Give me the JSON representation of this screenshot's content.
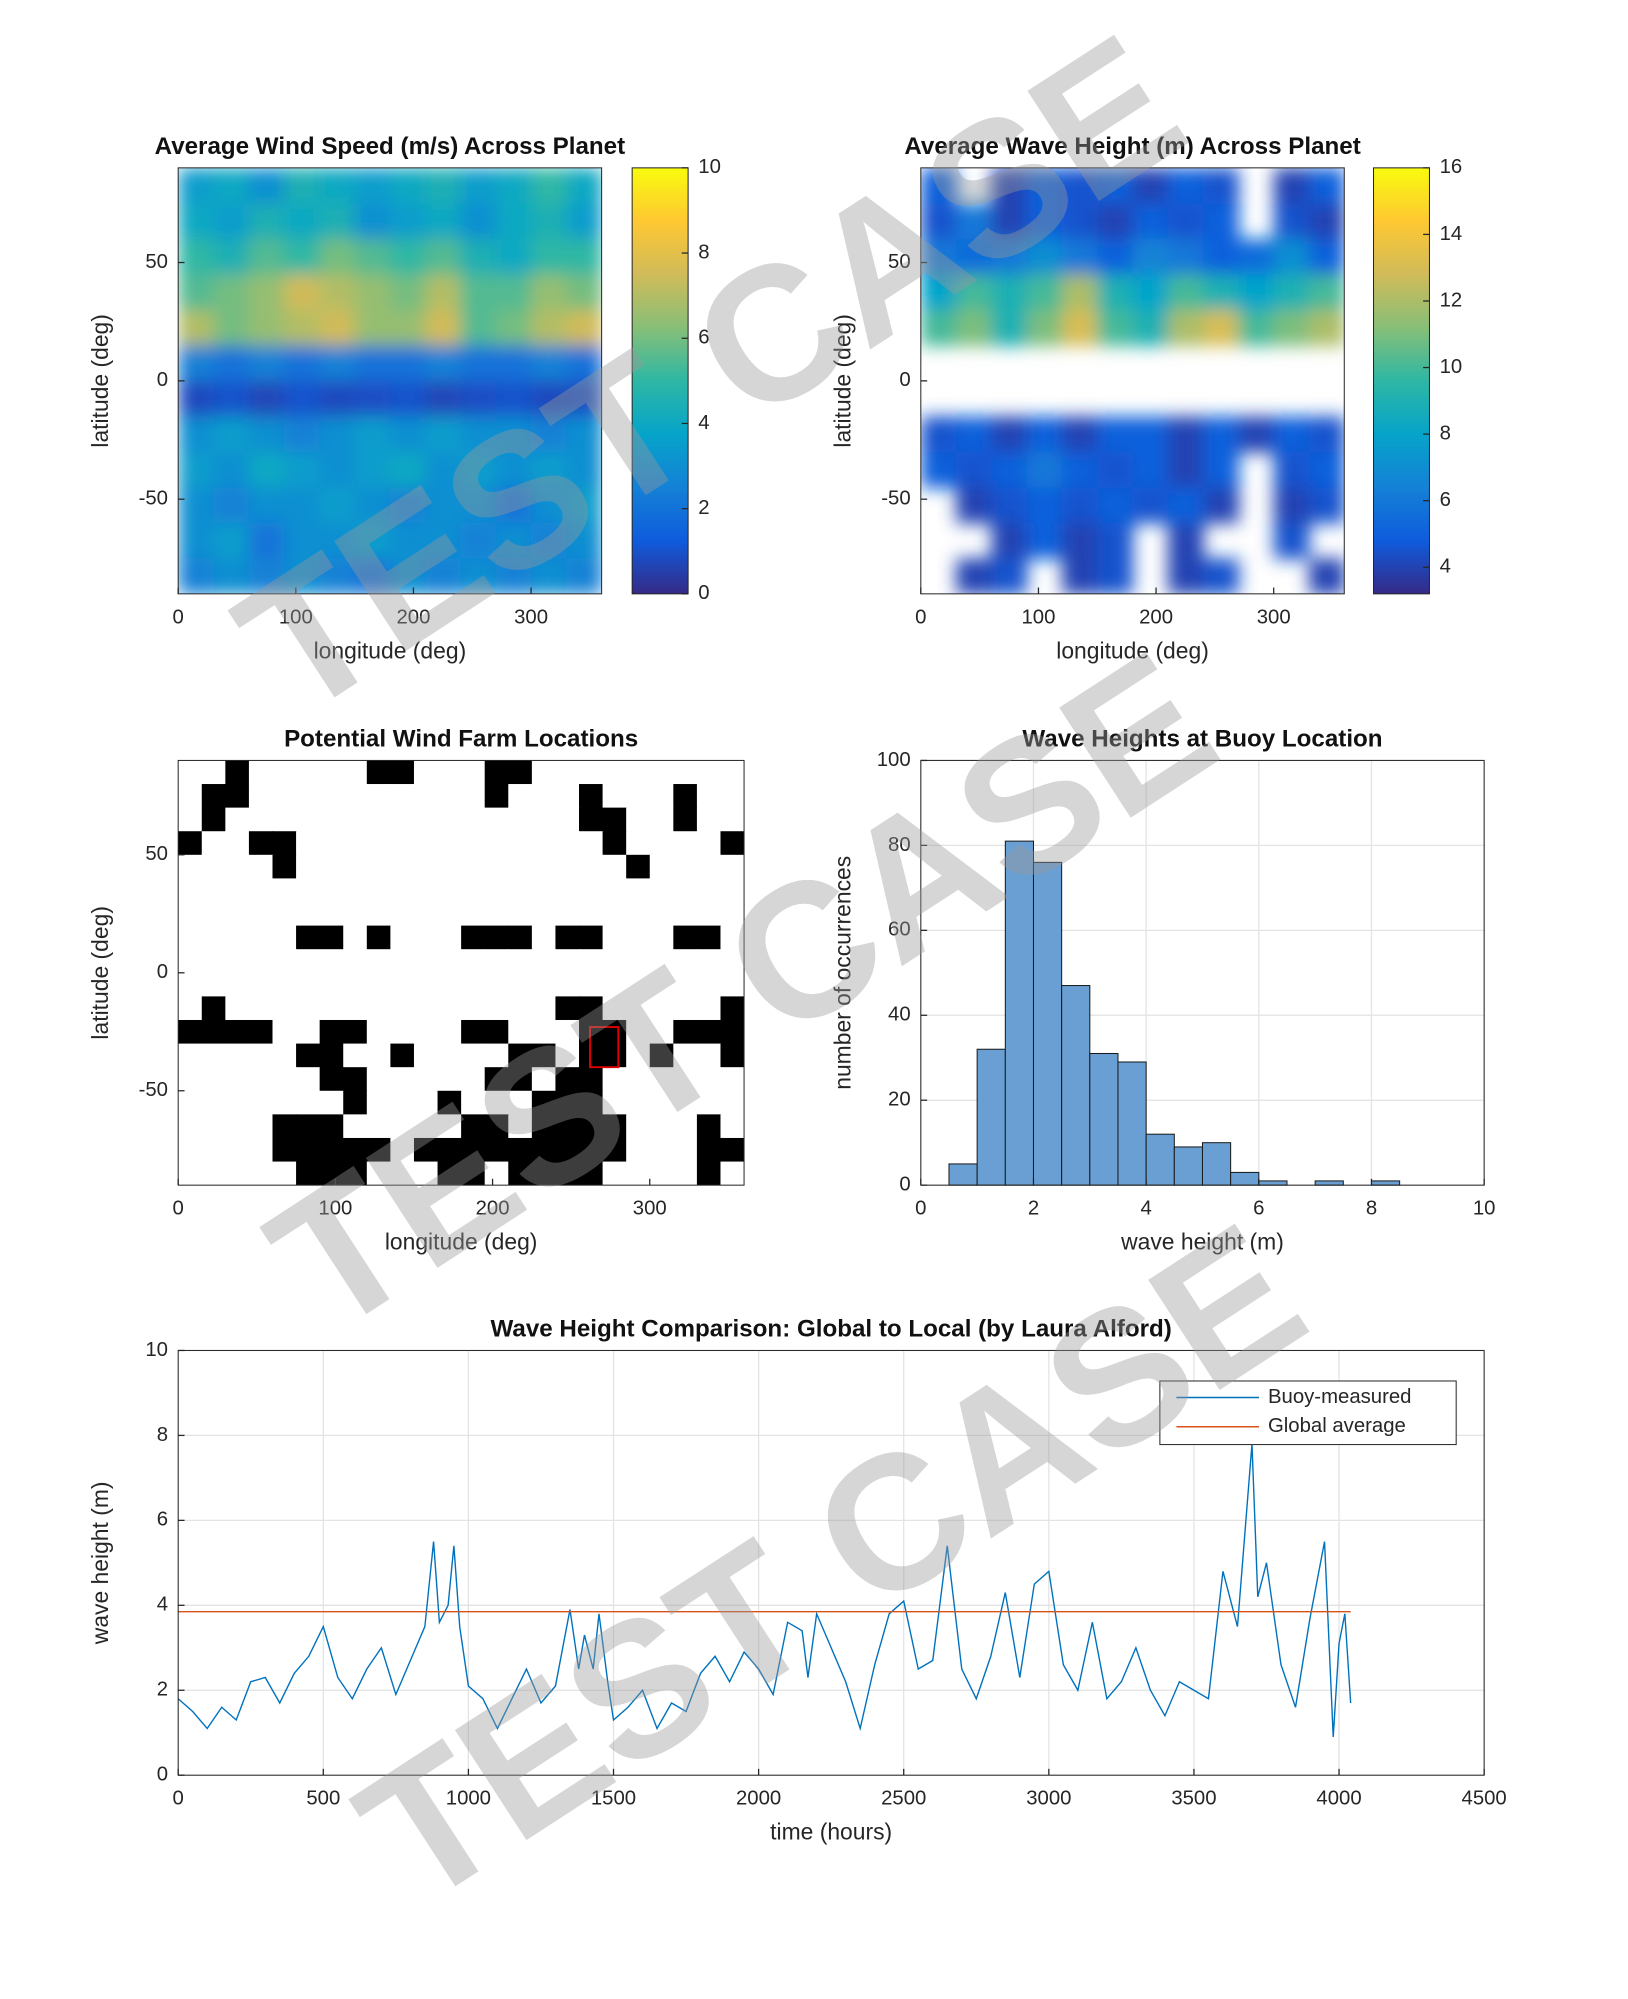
{
  "chart_data": [
    {
      "type": "heatmap",
      "title": "Average Wind Speed (m/s) Across Planet",
      "xlabel": "longitude (deg)",
      "ylabel": "latitude (deg)",
      "xlim": [
        0,
        360
      ],
      "ylim": [
        -90,
        90
      ],
      "xticks": [
        0,
        100,
        200,
        300
      ],
      "yticks": [
        -50,
        0,
        50
      ],
      "clim": [
        0,
        10
      ],
      "cticks": [
        0,
        2,
        4,
        6,
        8,
        10
      ],
      "colorbar": true,
      "smooth": true,
      "colormap": [
        "#352a87",
        "#0f5cdd",
        "#1481d6",
        "#06a4ca",
        "#2eb7a4",
        "#87bf77",
        "#d1bb59",
        "#fec832",
        "#f9fb0e"
      ],
      "z": [
        [
          3.5,
          4,
          3,
          4.5,
          4,
          3.5,
          4,
          4.5,
          3.5,
          4,
          5,
          4
        ],
        [
          4,
          3.5,
          4.5,
          4,
          4.5,
          3,
          3.5,
          4,
          3,
          4,
          4.5,
          3.5
        ],
        [
          5,
          4.5,
          5.5,
          5,
          6,
          5.5,
          5,
          5.5,
          4.5,
          4,
          5,
          5
        ],
        [
          5.5,
          6,
          6.5,
          7.5,
          7,
          6.5,
          6,
          7,
          5.5,
          5.5,
          6.5,
          6
        ],
        [
          7,
          6,
          6.5,
          7,
          7.5,
          6.5,
          6.5,
          7.5,
          5.5,
          6,
          7,
          7.5
        ],
        [
          2.5,
          2,
          2.5,
          2,
          2.5,
          2,
          2,
          2.5,
          2,
          2,
          2.5,
          2
        ],
        [
          0.8,
          1,
          0.7,
          1,
          0.8,
          0.9,
          1,
          0.7,
          0.9,
          1,
          0.8,
          0.9
        ],
        [
          3,
          3.5,
          3,
          2.5,
          3,
          3.5,
          3,
          3.5,
          3,
          3,
          2.5,
          3
        ],
        [
          3.5,
          3,
          4,
          3.5,
          3,
          3.5,
          4,
          3,
          3.5,
          3,
          3.5,
          3
        ],
        [
          3,
          2.5,
          3,
          3,
          3.5,
          3,
          2.5,
          3,
          3,
          2,
          3,
          3.5
        ],
        [
          3,
          3.5,
          2,
          3,
          3,
          3.5,
          3,
          3,
          2.5,
          3,
          2.5,
          3
        ],
        [
          2.5,
          3,
          2.5,
          3,
          2.5,
          2,
          3,
          2.5,
          3,
          2.5,
          3,
          2.5
        ]
      ]
    },
    {
      "type": "heatmap",
      "title": "Average Wave Height (m) Across Planet",
      "xlabel": "longitude (deg)",
      "ylabel": "latitude (deg)",
      "xlim": [
        0,
        360
      ],
      "ylim": [
        -90,
        90
      ],
      "xticks": [
        0,
        100,
        200,
        300
      ],
      "yticks": [
        -50,
        0,
        50
      ],
      "clim": [
        3.2,
        16
      ],
      "cticks": [
        4,
        6,
        8,
        10,
        12,
        14,
        16
      ],
      "colorbar": true,
      "smooth": true,
      "colormap": [
        "#352a87",
        "#0f5cdd",
        "#1481d6",
        "#06a4ca",
        "#2eb7a4",
        "#87bf77",
        "#d1bb59",
        "#fec832",
        "#f9fb0e"
      ],
      "z": [
        [
          5,
          null,
          4,
          5,
          4.5,
          5,
          4,
          5,
          4.5,
          null,
          4,
          5
        ],
        [
          4.5,
          6,
          4,
          5,
          4.5,
          4,
          5,
          4.5,
          5,
          null,
          4.5,
          4
        ],
        [
          6,
          5.5,
          6,
          7,
          6,
          5,
          6.5,
          6,
          5,
          5.5,
          7,
          5
        ],
        [
          8,
          10,
          9,
          10,
          12,
          9,
          8,
          10,
          9,
          8,
          9,
          10
        ],
        [
          10,
          11,
          9,
          11,
          13,
          10,
          9,
          12,
          13,
          10,
          11,
          12
        ],
        [
          null,
          null,
          null,
          null,
          null,
          null,
          null,
          null,
          null,
          null,
          null,
          null
        ],
        [
          null,
          null,
          null,
          null,
          null,
          null,
          null,
          null,
          null,
          null,
          null,
          null
        ],
        [
          4.5,
          5,
          4,
          5,
          4,
          5,
          5,
          4,
          5,
          4,
          5,
          4.5
        ],
        [
          5,
          4.5,
          5,
          6,
          5,
          4.5,
          5,
          4,
          5,
          null,
          4.5,
          5
        ],
        [
          null,
          4,
          4.5,
          5,
          4.5,
          5,
          4.5,
          5,
          4,
          null,
          4,
          4.5
        ],
        [
          null,
          null,
          4,
          5,
          4,
          4.5,
          null,
          4,
          null,
          null,
          4.5,
          null
        ],
        [
          null,
          4,
          4.5,
          null,
          4,
          4.5,
          null,
          4,
          4.5,
          null,
          null,
          4
        ]
      ]
    },
    {
      "type": "heatmap",
      "title": "Potential Wind Farm Locations",
      "xlabel": "longitude (deg)",
      "ylabel": "latitude (deg)",
      "xlim": [
        0,
        360
      ],
      "ylim": [
        -90,
        90
      ],
      "xticks": [
        0,
        100,
        200,
        300
      ],
      "yticks": [
        -50,
        0,
        50
      ],
      "clim": [
        0,
        1
      ],
      "colorbar": false,
      "smooth": false,
      "colormap": [
        "#ffffff",
        "#000000"
      ],
      "marker": {
        "x": [
          262,
          280
        ],
        "y": [
          -40,
          -23
        ],
        "color": "#e00000"
      },
      "z": [
        [
          0,
          0,
          1,
          0,
          0,
          0,
          0,
          0,
          1,
          1,
          0,
          0,
          0,
          1,
          1,
          0,
          0,
          0,
          0,
          0,
          0,
          0,
          0,
          0
        ],
        [
          0,
          1,
          1,
          0,
          0,
          0,
          0,
          0,
          0,
          0,
          0,
          0,
          0,
          1,
          0,
          0,
          0,
          1,
          0,
          0,
          0,
          1,
          0,
          0
        ],
        [
          0,
          1,
          0,
          0,
          0,
          0,
          0,
          0,
          0,
          0,
          0,
          0,
          0,
          0,
          0,
          0,
          0,
          1,
          1,
          0,
          0,
          1,
          0,
          0
        ],
        [
          1,
          0,
          0,
          1,
          1,
          0,
          0,
          0,
          0,
          0,
          0,
          0,
          0,
          0,
          0,
          0,
          0,
          0,
          1,
          0,
          0,
          0,
          0,
          1
        ],
        [
          0,
          0,
          0,
          0,
          1,
          0,
          0,
          0,
          0,
          0,
          0,
          0,
          0,
          0,
          0,
          0,
          0,
          0,
          0,
          1,
          0,
          0,
          0,
          0
        ],
        [
          0,
          0,
          0,
          0,
          0,
          0,
          0,
          0,
          0,
          0,
          0,
          0,
          0,
          0,
          0,
          0,
          0,
          0,
          0,
          0,
          0,
          0,
          0,
          0
        ],
        [
          0,
          0,
          0,
          0,
          0,
          0,
          0,
          0,
          0,
          0,
          0,
          0,
          0,
          0,
          0,
          0,
          0,
          0,
          0,
          0,
          0,
          0,
          0,
          0
        ],
        [
          0,
          0,
          0,
          0,
          0,
          1,
          1,
          0,
          1,
          0,
          0,
          0,
          1,
          1,
          1,
          0,
          1,
          1,
          0,
          0,
          0,
          1,
          1,
          0
        ],
        [
          0,
          0,
          0,
          0,
          0,
          0,
          0,
          0,
          0,
          0,
          0,
          0,
          0,
          0,
          0,
          0,
          0,
          0,
          0,
          0,
          0,
          0,
          0,
          0
        ],
        [
          0,
          0,
          0,
          0,
          0,
          0,
          0,
          0,
          0,
          0,
          0,
          0,
          0,
          0,
          0,
          0,
          0,
          0,
          0,
          0,
          0,
          0,
          0,
          0
        ],
        [
          0,
          1,
          0,
          0,
          0,
          0,
          0,
          0,
          0,
          0,
          0,
          0,
          0,
          0,
          0,
          0,
          1,
          1,
          0,
          0,
          0,
          0,
          0,
          1
        ],
        [
          1,
          1,
          1,
          1,
          0,
          0,
          1,
          1,
          0,
          0,
          0,
          0,
          1,
          1,
          0,
          0,
          0,
          1,
          1,
          0,
          0,
          1,
          1,
          1
        ],
        [
          0,
          0,
          0,
          0,
          0,
          1,
          1,
          0,
          0,
          1,
          0,
          0,
          0,
          0,
          1,
          1,
          0,
          1,
          1,
          0,
          1,
          0,
          0,
          1
        ],
        [
          0,
          0,
          0,
          0,
          0,
          0,
          1,
          1,
          0,
          0,
          0,
          0,
          0,
          1,
          1,
          0,
          1,
          1,
          0,
          0,
          0,
          0,
          0,
          0
        ],
        [
          0,
          0,
          0,
          0,
          0,
          0,
          0,
          1,
          0,
          0,
          0,
          1,
          0,
          0,
          0,
          1,
          1,
          1,
          0,
          0,
          0,
          0,
          0,
          0
        ],
        [
          0,
          0,
          0,
          0,
          1,
          1,
          1,
          0,
          0,
          0,
          0,
          0,
          1,
          1,
          0,
          1,
          1,
          1,
          1,
          0,
          0,
          0,
          1,
          0
        ],
        [
          0,
          0,
          0,
          0,
          1,
          1,
          1,
          1,
          1,
          0,
          1,
          1,
          1,
          1,
          1,
          1,
          1,
          1,
          1,
          0,
          0,
          0,
          1,
          1
        ],
        [
          0,
          0,
          0,
          0,
          0,
          1,
          1,
          1,
          0,
          0,
          0,
          1,
          1,
          0,
          1,
          1,
          1,
          1,
          0,
          0,
          0,
          0,
          1,
          0
        ]
      ]
    },
    {
      "type": "histogram",
      "title": "Wave Heights at Buoy Location",
      "xlabel": "wave height (m)",
      "ylabel": "number of occurrences",
      "bins": [
        0.5,
        1,
        1.5,
        2,
        2.5,
        3,
        3.5,
        4,
        4.5,
        5,
        5.5,
        6,
        6.5,
        7,
        7.5,
        8,
        8.5
      ],
      "values": [
        5,
        32,
        81,
        76,
        47,
        31,
        29,
        12,
        9,
        10,
        3,
        1,
        0,
        1,
        0,
        1
      ],
      "color": "#6a9fd3",
      "xlim": [
        0,
        10
      ],
      "ylim": [
        0,
        100
      ],
      "xticks": [
        0,
        2,
        4,
        6,
        8,
        10
      ],
      "yticks": [
        0,
        20,
        40,
        60,
        80,
        100
      ],
      "grid": true
    },
    {
      "type": "line",
      "title": "Wave Height Comparison: Global to Local (by Laura Alford)",
      "xlabel": "time (hours)",
      "ylabel": "wave height (m)",
      "xlim": [
        0,
        4500
      ],
      "ylim": [
        0,
        10
      ],
      "xticks": [
        0,
        500,
        1000,
        1500,
        2000,
        2500,
        3000,
        3500,
        4000,
        4500
      ],
      "yticks": [
        0,
        2,
        4,
        6,
        8,
        10
      ],
      "grid": true,
      "legend": "northeast",
      "series": [
        {
          "name": "Buoy-measured",
          "color": "#0072bd",
          "x": [
            0,
            50,
            100,
            150,
            200,
            250,
            300,
            350,
            400,
            450,
            500,
            550,
            600,
            650,
            700,
            750,
            800,
            850,
            880,
            900,
            930,
            950,
            970,
            1000,
            1050,
            1100,
            1150,
            1200,
            1250,
            1300,
            1350,
            1380,
            1400,
            1430,
            1450,
            1480,
            1500,
            1550,
            1600,
            1650,
            1700,
            1750,
            1800,
            1850,
            1900,
            1950,
            2000,
            2050,
            2100,
            2150,
            2170,
            2200,
            2250,
            2300,
            2350,
            2400,
            2450,
            2500,
            2550,
            2600,
            2650,
            2700,
            2750,
            2800,
            2850,
            2900,
            2950,
            3000,
            3050,
            3100,
            3150,
            3200,
            3250,
            3300,
            3350,
            3400,
            3450,
            3500,
            3550,
            3600,
            3650,
            3700,
            3720,
            3750,
            3800,
            3850,
            3900,
            3950,
            3980,
            4000,
            4020,
            4040
          ],
          "values": [
            1.8,
            1.5,
            1.1,
            1.6,
            1.3,
            2.2,
            2.3,
            1.7,
            2.4,
            2.8,
            3.5,
            2.3,
            1.8,
            2.5,
            3.0,
            1.9,
            2.7,
            3.5,
            5.5,
            3.6,
            4.0,
            5.4,
            3.5,
            2.1,
            1.8,
            1.1,
            1.8,
            2.5,
            1.7,
            2.1,
            3.9,
            2.5,
            3.3,
            2.5,
            3.8,
            2.2,
            1.3,
            1.6,
            2.0,
            1.1,
            1.7,
            1.5,
            2.4,
            2.8,
            2.2,
            2.9,
            2.5,
            1.9,
            3.6,
            3.4,
            2.3,
            3.8,
            3.0,
            2.2,
            1.1,
            2.6,
            3.8,
            4.1,
            2.5,
            2.7,
            5.4,
            2.5,
            1.8,
            2.8,
            4.3,
            2.3,
            4.5,
            4.8,
            2.6,
            2.0,
            3.6,
            1.8,
            2.2,
            3.0,
            2.0,
            1.4,
            2.2,
            2.0,
            1.8,
            4.8,
            3.5,
            7.8,
            4.2,
            5.0,
            2.6,
            1.6,
            3.7,
            5.5,
            0.9,
            3.1,
            3.8,
            1.7
          ]
        },
        {
          "name": "Global average",
          "color": "#d95319",
          "x": [
            0,
            4040
          ],
          "values": [
            3.85,
            3.85
          ]
        }
      ]
    }
  ],
  "watermarks": [
    "TEST CASE",
    "TEST CASE",
    "TEST CASE"
  ]
}
